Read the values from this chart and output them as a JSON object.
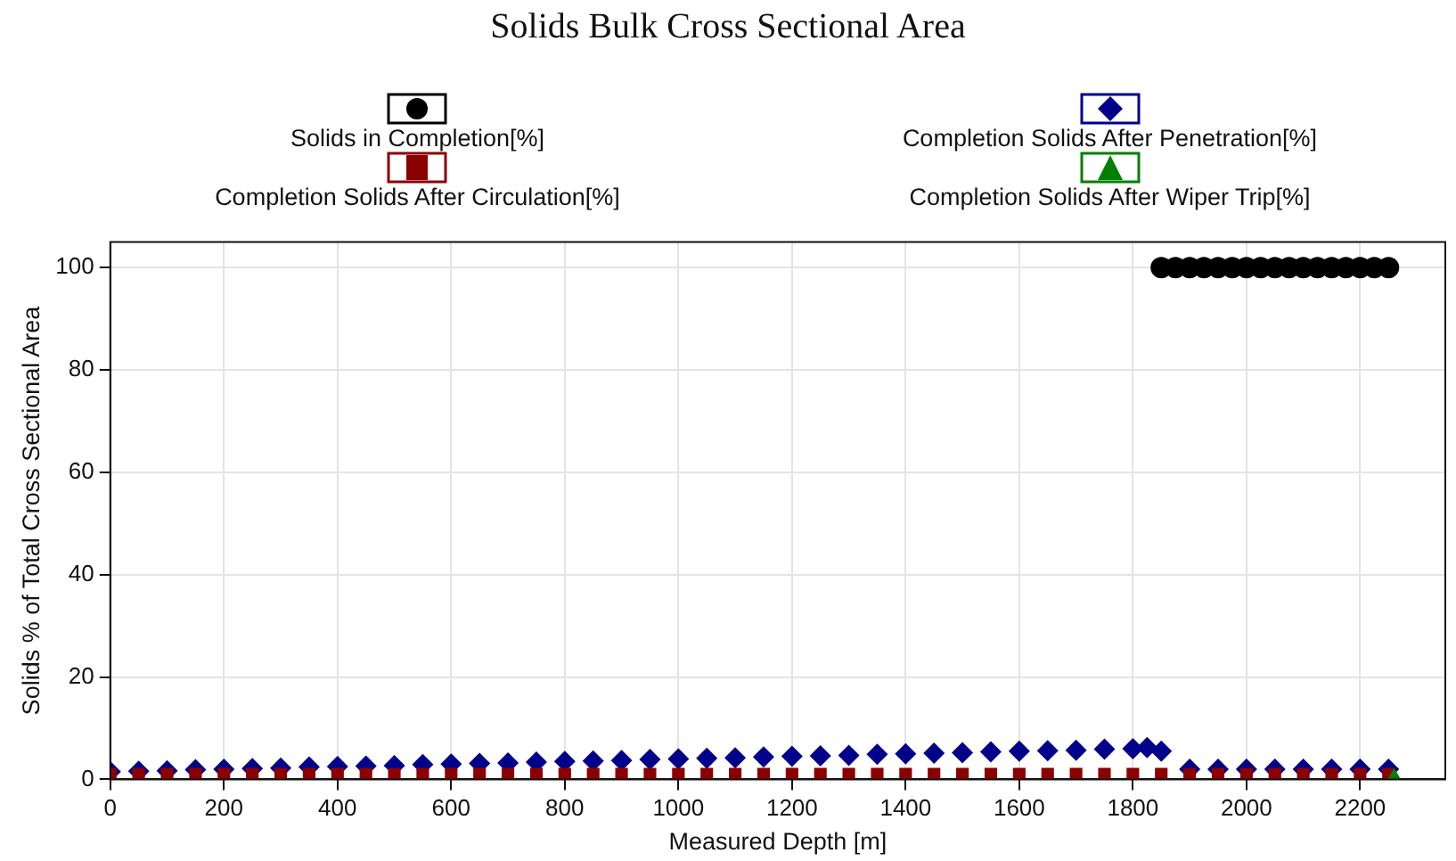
{
  "chart_data": {
    "type": "scatter",
    "title": "Solids Bulk Cross Sectional Area",
    "xlabel": "Measured Depth [m]",
    "ylabel": "Solids % of Total Cross Sectional Area",
    "xlim": [
      0,
      2350
    ],
    "xticks": [
      0,
      200,
      400,
      600,
      800,
      1000,
      1200,
      1400,
      1600,
      1800,
      2000,
      2200
    ],
    "ylim": [
      0,
      105
    ],
    "yticks": [
      0,
      20,
      40,
      60,
      80,
      100
    ],
    "grid": true,
    "legend": "top",
    "series": [
      {
        "name": "Solids in Completion[%]",
        "color": "#000000",
        "marker": "circle",
        "x": [
          1850,
          1875,
          1900,
          1925,
          1950,
          1975,
          2000,
          2025,
          2050,
          2075,
          2100,
          2125,
          2150,
          2175,
          2200,
          2225,
          2250
        ],
        "values": [
          100,
          100,
          100,
          100,
          100,
          100,
          100,
          100,
          100,
          100,
          100,
          100,
          100,
          100,
          100,
          100,
          100
        ]
      },
      {
        "name": "Completion Solids After Penetration[%]",
        "color": "#00008b",
        "marker": "diamond",
        "x": [
          0,
          50,
          100,
          150,
          200,
          250,
          300,
          350,
          400,
          450,
          500,
          550,
          600,
          650,
          700,
          750,
          800,
          850,
          900,
          950,
          1000,
          1050,
          1100,
          1150,
          1200,
          1250,
          1300,
          1350,
          1400,
          1450,
          1500,
          1550,
          1600,
          1650,
          1700,
          1750,
          1800,
          1825,
          1850,
          1900,
          1950,
          2000,
          2050,
          2100,
          2150,
          2200,
          2250
        ],
        "values": [
          1.5,
          1.6,
          1.7,
          1.9,
          2.0,
          2.1,
          2.2,
          2.4,
          2.5,
          2.6,
          2.7,
          2.9,
          3.0,
          3.1,
          3.2,
          3.4,
          3.5,
          3.6,
          3.7,
          3.9,
          4.0,
          4.1,
          4.2,
          4.4,
          4.5,
          4.6,
          4.7,
          4.9,
          5.0,
          5.1,
          5.2,
          5.4,
          5.5,
          5.6,
          5.7,
          5.9,
          6.0,
          6.2,
          5.5,
          2,
          2,
          2,
          2,
          2,
          2,
          2,
          2
        ]
      },
      {
        "name": "Completion Solids After Circulation[%]",
        "color": "#8b0000",
        "marker": "square",
        "x": [
          0,
          50,
          100,
          150,
          200,
          250,
          300,
          350,
          400,
          450,
          500,
          550,
          600,
          650,
          700,
          750,
          800,
          850,
          900,
          950,
          1000,
          1050,
          1100,
          1150,
          1200,
          1250,
          1300,
          1350,
          1400,
          1450,
          1500,
          1550,
          1600,
          1650,
          1700,
          1750,
          1800,
          1850,
          1900,
          1950,
          2000,
          2050,
          2100,
          2150,
          2200,
          2250
        ],
        "values": [
          1,
          1,
          1,
          1,
          1,
          1,
          1,
          1,
          1,
          1,
          1,
          1,
          1,
          1,
          1,
          1,
          1,
          1,
          1,
          1,
          1,
          1,
          1,
          1,
          1,
          1,
          1,
          1,
          1,
          1,
          1,
          1,
          1,
          1,
          1,
          1,
          1,
          1,
          1,
          1,
          1,
          1,
          1,
          1,
          1,
          1
        ]
      },
      {
        "name": "Completion Solids After Wiper Trip[%]",
        "color": "#008000",
        "marker": "triangle",
        "x": [
          2260
        ],
        "values": [
          0.5
        ]
      }
    ]
  }
}
